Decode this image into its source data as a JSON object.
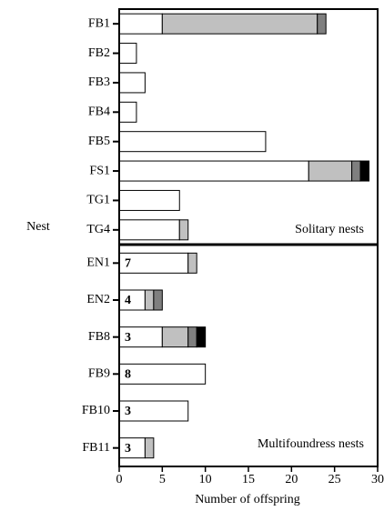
{
  "chart_data": [
    {
      "type": "stacked_barh",
      "note": "Solitary nests",
      "ylabel": "Nest",
      "categories": [
        "FB1",
        "FB2",
        "FB3",
        "FB4",
        "FB5",
        "FS1",
        "TG1",
        "TG4"
      ],
      "series": [
        {
          "color": "#ffffff",
          "values": [
            5,
            2,
            3,
            2,
            17,
            22,
            7,
            7
          ]
        },
        {
          "color": "#c0c0c0",
          "values": [
            18,
            0,
            0,
            0,
            0,
            5,
            0,
            1
          ]
        },
        {
          "color": "#7f7f7f",
          "values": [
            1,
            0,
            0,
            0,
            0,
            1,
            0,
            0
          ]
        },
        {
          "color": "#000000",
          "values": [
            0,
            0,
            0,
            0,
            0,
            1,
            0,
            0
          ]
        }
      ],
      "xlim": [
        0,
        30
      ]
    },
    {
      "type": "stacked_barh",
      "note": "Multifoundress nests",
      "xlabel": "Number of offspring",
      "categories": [
        "EN1",
        "EN2",
        "FB8",
        "FB9",
        "FB10",
        "FB11"
      ],
      "bar_labels": [
        7,
        4,
        3,
        8,
        3,
        3
      ],
      "series": [
        {
          "color": "#ffffff",
          "values": [
            8,
            3,
            5,
            10,
            8,
            3
          ]
        },
        {
          "color": "#c0c0c0",
          "values": [
            1,
            1,
            3,
            0,
            0,
            1
          ]
        },
        {
          "color": "#7f7f7f",
          "values": [
            0,
            1,
            1,
            0,
            0,
            0
          ]
        },
        {
          "color": "#000000",
          "values": [
            0,
            0,
            1,
            0,
            0,
            0
          ]
        }
      ],
      "xlim": [
        0,
        30
      ],
      "xticks": [
        0,
        5,
        10,
        15,
        20,
        25,
        30
      ]
    }
  ]
}
